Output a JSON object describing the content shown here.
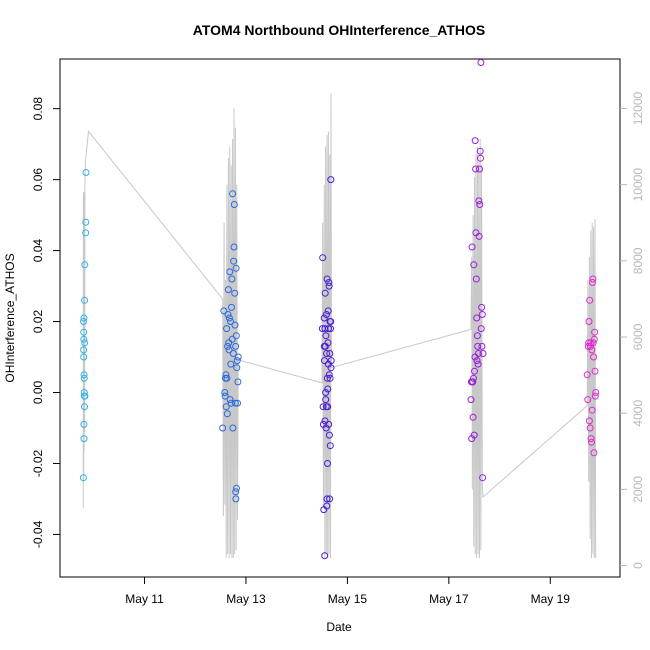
{
  "chart_data": {
    "type": "scatter",
    "title": "ATOM4 Northbound OHInterference_ATHOS",
    "xlabel": "Date",
    "ylabel": "OHInterference_ATHOS",
    "x_ticks": [
      "May 11",
      "May 13",
      "May 15",
      "May 17",
      "May 19"
    ],
    "x_tick_dates": [
      "2018-05-11",
      "2018-05-13",
      "2018-05-15",
      "2018-05-17",
      "2018-05-19"
    ],
    "y_ticks": [
      -0.04,
      -0.02,
      0.0,
      0.02,
      0.04,
      0.06,
      0.08
    ],
    "y_tick_labels": [
      "-0.04",
      "-0.02",
      "0.00",
      "0.02",
      "0.04",
      "0.06",
      "0.08"
    ],
    "ylim": [
      -0.052,
      0.094
    ],
    "y2_ticks": [
      0,
      2000,
      4000,
      6000,
      8000,
      10000,
      12000
    ],
    "y2_tick_labels": [
      "0",
      "2000",
      "4000",
      "6000",
      "8000",
      "10000",
      "12000"
    ],
    "y2lim": [
      -300,
      13300
    ],
    "xlim": [
      "2018-05-09T08:00",
      "2018-05-20T09:00"
    ],
    "grid": false,
    "colors": {
      "line": "#c8c8c8",
      "axis": "#000000",
      "right_axis": "#b8b8b8",
      "cluster_1": "#2eb2e6",
      "cluster_2": "#2a6ae0",
      "cluster_3": "#4a1ed6",
      "cluster_4": "#9a1fdb",
      "cluster_5": "#e02ad0"
    },
    "series": [
      {
        "color_key": "cluster_1",
        "points": [
          [
            "2018-05-09T19:05",
            -0.024
          ],
          [
            "2018-05-09T19:08",
            0.02
          ],
          [
            "2018-05-09T19:10",
            0.012
          ],
          [
            "2018-05-09T19:12",
            0.017
          ],
          [
            "2018-05-09T19:14",
            0.01
          ],
          [
            "2018-05-09T19:16",
            0.015
          ],
          [
            "2018-05-09T19:18",
            0.021
          ],
          [
            "2018-05-09T19:20",
            -0.009
          ],
          [
            "2018-05-09T19:22",
            -0.013
          ],
          [
            "2018-05-09T19:25",
            0.005
          ],
          [
            "2018-05-09T19:28",
            0.004
          ],
          [
            "2018-05-09T19:30",
            0.0
          ],
          [
            "2018-05-09T19:32",
            -0.001
          ],
          [
            "2018-05-09T19:35",
            -0.004
          ],
          [
            "2018-05-09T19:38",
            0.026
          ],
          [
            "2018-05-09T19:40",
            0.014
          ],
          [
            "2018-05-09T19:43",
            0.036
          ],
          [
            "2018-05-09T19:47",
            -0.001
          ],
          [
            "2018-05-09T20:10",
            0.045
          ],
          [
            "2018-05-09T20:13",
            0.048
          ],
          [
            "2018-05-09T20:18",
            0.062
          ]
        ]
      },
      {
        "color_key": "cluster_2",
        "points": [
          [
            "2018-05-12T13:00",
            -0.01
          ],
          [
            "2018-05-12T13:30",
            0.023
          ],
          [
            "2018-05-12T14:00",
            0.0
          ],
          [
            "2018-05-12T14:10",
            -0.001
          ],
          [
            "2018-05-12T14:20",
            0.004
          ],
          [
            "2018-05-12T14:30",
            0.005
          ],
          [
            "2018-05-12T14:40",
            -0.004
          ],
          [
            "2018-05-12T14:50",
            0.018
          ],
          [
            "2018-05-12T15:00",
            0.004
          ],
          [
            "2018-05-12T15:10",
            -0.006
          ],
          [
            "2018-05-12T15:20",
            0.013
          ],
          [
            "2018-05-12T15:30",
            0.022
          ],
          [
            "2018-05-12T15:40",
            0.029
          ],
          [
            "2018-05-12T15:50",
            0.014
          ],
          [
            "2018-05-12T16:00",
            0.012
          ],
          [
            "2018-05-12T16:10",
            0.021
          ],
          [
            "2018-05-12T16:20",
            0.034
          ],
          [
            "2018-05-12T16:30",
            -0.002
          ],
          [
            "2018-05-12T16:40",
            0.02
          ],
          [
            "2018-05-12T16:50",
            0.008
          ],
          [
            "2018-05-12T17:00",
            -0.003
          ],
          [
            "2018-05-12T17:10",
            0.024
          ],
          [
            "2018-05-12T17:20",
            0.032
          ],
          [
            "2018-05-12T17:30",
            0.015
          ],
          [
            "2018-05-12T17:40",
            0.056
          ],
          [
            "2018-05-12T17:50",
            -0.01
          ],
          [
            "2018-05-12T18:00",
            0.011
          ],
          [
            "2018-05-12T18:10",
            0.037
          ],
          [
            "2018-05-12T18:20",
            0.041
          ],
          [
            "2018-05-12T18:30",
            0.053
          ],
          [
            "2018-05-12T18:40",
            0.028
          ],
          [
            "2018-05-12T18:50",
            0.019
          ],
          [
            "2018-05-12T19:00",
            -0.003
          ],
          [
            "2018-05-12T19:05",
            0.013
          ],
          [
            "2018-05-12T19:10",
            -0.028
          ],
          [
            "2018-05-12T19:15",
            -0.03
          ],
          [
            "2018-05-12T19:20",
            0.035
          ],
          [
            "2018-05-12T19:25",
            0.016
          ],
          [
            "2018-05-12T19:30",
            -0.027
          ],
          [
            "2018-05-12T19:40",
            0.007
          ],
          [
            "2018-05-12T19:50",
            0.009
          ],
          [
            "2018-05-12T20:00",
            -0.003
          ],
          [
            "2018-05-12T20:10",
            0.003
          ],
          [
            "2018-05-12T20:20",
            0.01
          ]
        ]
      },
      {
        "color_key": "cluster_3",
        "points": [
          [
            "2018-05-14T12:10",
            0.018
          ],
          [
            "2018-05-14T12:20",
            0.038
          ],
          [
            "2018-05-14T12:30",
            -0.004
          ],
          [
            "2018-05-14T12:40",
            -0.009
          ],
          [
            "2018-05-14T12:50",
            -0.033
          ],
          [
            "2018-05-14T13:00",
            0.021
          ],
          [
            "2018-05-14T13:05",
            0.013
          ],
          [
            "2018-05-14T13:10",
            0.009
          ],
          [
            "2018-05-14T13:15",
            -0.046
          ],
          [
            "2018-05-14T13:20",
            0.018
          ],
          [
            "2018-05-14T13:25",
            -0.008
          ],
          [
            "2018-05-14T13:30",
            0.028
          ],
          [
            "2018-05-14T13:35",
            0.013
          ],
          [
            "2018-05-14T13:40",
            0.0
          ],
          [
            "2018-05-14T13:45",
            -0.002
          ],
          [
            "2018-05-14T13:50",
            0.016
          ],
          [
            "2018-05-14T13:55",
            -0.01
          ],
          [
            "2018-05-14T14:00",
            -0.004
          ],
          [
            "2018-05-14T14:05",
            0.022
          ],
          [
            "2018-05-14T14:10",
            0.011
          ],
          [
            "2018-05-14T14:15",
            -0.032
          ],
          [
            "2018-05-14T14:20",
            -0.03
          ],
          [
            "2018-05-14T14:25",
            0.032
          ],
          [
            "2018-05-14T14:30",
            0.004
          ],
          [
            "2018-05-14T14:35",
            -0.02
          ],
          [
            "2018-05-14T14:40",
            -0.004
          ],
          [
            "2018-05-14T14:45",
            0.001
          ],
          [
            "2018-05-14T14:50",
            0.014
          ],
          [
            "2018-05-14T14:55",
            0.023
          ],
          [
            "2018-05-14T15:00",
            0.008
          ],
          [
            "2018-05-14T15:05",
            0.018
          ],
          [
            "2018-05-14T15:10",
            -0.009
          ],
          [
            "2018-05-14T15:15",
            0.031
          ],
          [
            "2018-05-14T15:20",
            0.03
          ],
          [
            "2018-05-14T15:25",
            0.005
          ],
          [
            "2018-05-14T15:30",
            -0.012
          ],
          [
            "2018-05-14T15:35",
            -0.03
          ],
          [
            "2018-05-14T15:40",
            0.011
          ],
          [
            "2018-05-14T15:45",
            0.02
          ],
          [
            "2018-05-14T15:50",
            0.004
          ],
          [
            "2018-05-14T15:55",
            -0.015
          ],
          [
            "2018-05-14T16:00",
            0.018
          ],
          [
            "2018-05-14T16:05",
            0.02
          ],
          [
            "2018-05-14T16:10",
            0.06
          ],
          [
            "2018-05-14T16:15",
            0.007
          ],
          [
            "2018-05-14T16:20",
            0.009
          ]
        ]
      },
      {
        "color_key": "cluster_4",
        "points": [
          [
            "2018-05-17T10:30",
            -0.002
          ],
          [
            "2018-05-17T10:40",
            0.003
          ],
          [
            "2018-05-17T10:50",
            -0.013
          ],
          [
            "2018-05-17T11:00",
            0.041
          ],
          [
            "2018-05-17T11:10",
            0.003
          ],
          [
            "2018-05-17T11:20",
            0.003
          ],
          [
            "2018-05-17T11:30",
            -0.007
          ],
          [
            "2018-05-17T11:40",
            0.004
          ],
          [
            "2018-05-17T11:50",
            0.036
          ],
          [
            "2018-05-17T12:00",
            -0.012
          ],
          [
            "2018-05-17T12:10",
            0.006
          ],
          [
            "2018-05-17T12:20",
            0.01
          ],
          [
            "2018-05-17T12:30",
            0.071
          ],
          [
            "2018-05-17T12:40",
            0.063
          ],
          [
            "2018-05-17T12:50",
            0.045
          ],
          [
            "2018-05-17T13:00",
            0.032
          ],
          [
            "2018-05-17T13:10",
            0.021
          ],
          [
            "2018-05-17T13:20",
            0.009
          ],
          [
            "2018-05-17T13:30",
            0.016
          ],
          [
            "2018-05-17T13:40",
            0.013
          ],
          [
            "2018-05-17T13:50",
            0.008
          ],
          [
            "2018-05-17T14:00",
            0.011
          ],
          [
            "2018-05-17T14:10",
            0.054
          ],
          [
            "2018-05-17T14:20",
            0.044
          ],
          [
            "2018-05-17T14:30",
            0.063
          ],
          [
            "2018-05-17T14:40",
            0.053
          ],
          [
            "2018-05-17T14:50",
            0.068
          ],
          [
            "2018-05-17T15:00",
            0.066
          ],
          [
            "2018-05-17T15:10",
            0.093
          ],
          [
            "2018-05-17T15:20",
            0.018
          ],
          [
            "2018-05-17T15:30",
            0.024
          ],
          [
            "2018-05-17T15:40",
            0.013
          ],
          [
            "2018-05-17T15:50",
            0.022
          ],
          [
            "2018-05-17T16:00",
            -0.024
          ],
          [
            "2018-05-17T16:10",
            0.011
          ]
        ]
      },
      {
        "color_key": "cluster_5",
        "points": [
          [
            "2018-05-19T17:30",
            0.005
          ],
          [
            "2018-05-19T17:45",
            -0.002
          ],
          [
            "2018-05-19T18:00",
            0.013
          ],
          [
            "2018-05-19T18:10",
            0.014
          ],
          [
            "2018-05-19T18:20",
            0.02
          ],
          [
            "2018-05-19T18:30",
            -0.008
          ],
          [
            "2018-05-19T18:40",
            0.026
          ],
          [
            "2018-05-19T18:50",
            -0.01
          ],
          [
            "2018-05-19T19:00",
            0.013
          ],
          [
            "2018-05-19T19:10",
            0.014
          ],
          [
            "2018-05-19T19:20",
            -0.013
          ],
          [
            "2018-05-19T19:30",
            -0.014
          ],
          [
            "2018-05-19T19:40",
            0.012
          ],
          [
            "2018-05-19T19:50",
            -0.005
          ],
          [
            "2018-05-19T20:00",
            0.031
          ],
          [
            "2018-05-19T20:10",
            0.032
          ],
          [
            "2018-05-19T20:20",
            0.014
          ],
          [
            "2018-05-19T20:30",
            0.01
          ],
          [
            "2018-05-19T20:40",
            -0.017
          ],
          [
            "2018-05-19T20:50",
            0.015
          ],
          [
            "2018-05-19T21:00",
            0.017
          ],
          [
            "2018-05-19T21:10",
            0.006
          ],
          [
            "2018-05-19T21:20",
            -0.001
          ],
          [
            "2018-05-19T21:30",
            0.0
          ]
        ]
      }
    ],
    "line_series": {
      "axis": "right",
      "points": [
        [
          "2018-05-09T19:00",
          1500
        ],
        [
          "2018-05-09T19:05",
          9800
        ],
        [
          "2018-05-09T19:12",
          2200
        ],
        [
          "2018-05-09T19:18",
          9700
        ],
        [
          "2018-05-09T19:25",
          3000
        ],
        [
          "2018-05-09T19:32",
          9800
        ],
        [
          "2018-05-09T19:40",
          3500
        ],
        [
          "2018-05-09T19:48",
          10000
        ],
        [
          "2018-05-09T20:00",
          10600
        ],
        [
          "2018-05-09T21:30",
          11400
        ],
        [
          "2018-05-12T13:00",
          7000
        ],
        [
          "2018-05-12T13:20",
          1300
        ],
        [
          "2018-05-12T13:40",
          9000
        ],
        [
          "2018-05-12T14:00",
          1600
        ],
        [
          "2018-05-12T14:20",
          7500
        ],
        [
          "2018-05-12T14:40",
          200
        ],
        [
          "2018-05-12T15:00",
          10000
        ],
        [
          "2018-05-12T15:20",
          300
        ],
        [
          "2018-05-12T15:40",
          10700
        ],
        [
          "2018-05-12T16:00",
          200
        ],
        [
          "2018-05-12T16:20",
          11000
        ],
        [
          "2018-05-12T16:40",
          300
        ],
        [
          "2018-05-12T17:00",
          10500
        ],
        [
          "2018-05-12T17:20",
          200
        ],
        [
          "2018-05-12T17:40",
          11200
        ],
        [
          "2018-05-12T18:00",
          200
        ],
        [
          "2018-05-12T18:20",
          12000
        ],
        [
          "2018-05-12T18:40",
          300
        ],
        [
          "2018-05-12T19:00",
          11500
        ],
        [
          "2018-05-12T19:20",
          400
        ],
        [
          "2018-05-12T19:40",
          10000
        ],
        [
          "2018-05-12T20:00",
          1200
        ],
        [
          "2018-05-12T20:20",
          5400
        ],
        [
          "2018-05-14T12:00",
          4800
        ],
        [
          "2018-05-14T12:20",
          9000
        ],
        [
          "2018-05-14T12:40",
          1500
        ],
        [
          "2018-05-14T13:00",
          10000
        ],
        [
          "2018-05-14T13:20",
          200
        ],
        [
          "2018-05-14T13:40",
          11000
        ],
        [
          "2018-05-14T14:00",
          300
        ],
        [
          "2018-05-14T14:20",
          11300
        ],
        [
          "2018-05-14T14:40",
          200
        ],
        [
          "2018-05-14T15:00",
          11400
        ],
        [
          "2018-05-14T15:20",
          300
        ],
        [
          "2018-05-14T15:40",
          10800
        ],
        [
          "2018-05-14T16:00",
          200
        ],
        [
          "2018-05-14T16:15",
          12400
        ],
        [
          "2018-05-14T16:30",
          5200
        ],
        [
          "2018-05-17T10:30",
          6200
        ],
        [
          "2018-05-17T10:50",
          8100
        ],
        [
          "2018-05-17T11:10",
          2000
        ],
        [
          "2018-05-17T11:30",
          9200
        ],
        [
          "2018-05-17T11:50",
          500
        ],
        [
          "2018-05-17T12:10",
          10200
        ],
        [
          "2018-05-17T12:30",
          300
        ],
        [
          "2018-05-17T12:50",
          10800
        ],
        [
          "2018-05-17T13:10",
          200
        ],
        [
          "2018-05-17T13:30",
          11000
        ],
        [
          "2018-05-17T13:50",
          300
        ],
        [
          "2018-05-17T14:10",
          10600
        ],
        [
          "2018-05-17T14:30",
          200
        ],
        [
          "2018-05-17T14:50",
          11200
        ],
        [
          "2018-05-17T15:10",
          400
        ],
        [
          "2018-05-17T15:30",
          10500
        ],
        [
          "2018-05-17T15:50",
          2100
        ],
        [
          "2018-05-17T16:10",
          1800
        ],
        [
          "2018-05-19T17:30",
          4200
        ],
        [
          "2018-05-19T17:50",
          7500
        ],
        [
          "2018-05-19T18:10",
          2200
        ],
        [
          "2018-05-19T18:30",
          8100
        ],
        [
          "2018-05-19T18:50",
          700
        ],
        [
          "2018-05-19T19:10",
          8800
        ],
        [
          "2018-05-19T19:30",
          200
        ],
        [
          "2018-05-19T19:50",
          9000
        ],
        [
          "2018-05-19T20:10",
          300
        ],
        [
          "2018-05-19T20:30",
          8900
        ],
        [
          "2018-05-19T20:50",
          200
        ],
        [
          "2018-05-19T21:10",
          9100
        ],
        [
          "2018-05-19T21:30",
          200
        ]
      ]
    }
  }
}
